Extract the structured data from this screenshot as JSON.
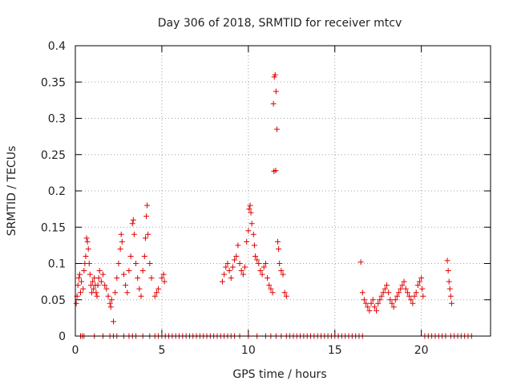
{
  "chart_data": {
    "type": "scatter",
    "title": "Day 306 of 2018, SRMTID for receiver mtcv",
    "xlabel": "GPS time / hours",
    "ylabel": "SRMTID / TECUs",
    "xlim": [
      0,
      24
    ],
    "ylim": [
      0,
      0.4
    ],
    "x_ticks": [
      0,
      5,
      10,
      15,
      20
    ],
    "y_ticks": [
      0,
      0.05,
      0.1,
      0.15,
      0.2,
      0.25,
      0.3,
      0.35,
      0.4
    ],
    "x_tick_labels": [
      "0",
      "5",
      "10",
      "15",
      "20"
    ],
    "y_tick_labels": [
      "0",
      "0.05",
      "0.1",
      "0.15",
      "0.2",
      "0.25",
      "0.3",
      "0.35",
      "0.4"
    ],
    "grid": true,
    "marker": "plus",
    "color": "#e00000",
    "series": [
      {
        "name": "SRMTID",
        "points": [
          [
            0.05,
            0.045
          ],
          [
            0.1,
            0.055
          ],
          [
            0.15,
            0.07
          ],
          [
            0.2,
            0.08
          ],
          [
            0.25,
            0.085
          ],
          [
            0.3,
            0.06
          ],
          [
            0.35,
            0.075
          ],
          [
            0.45,
            0.065
          ],
          [
            0.5,
            0.09
          ],
          [
            0.55,
            0.1
          ],
          [
            0.6,
            0.11
          ],
          [
            0.65,
            0.135
          ],
          [
            0.7,
            0.13
          ],
          [
            0.75,
            0.12
          ],
          [
            0.8,
            0.1
          ],
          [
            0.85,
            0.085
          ],
          [
            0.9,
            0.07
          ],
          [
            0.95,
            0.06
          ],
          [
            1.0,
            0.075
          ],
          [
            1.05,
            0.065
          ],
          [
            1.1,
            0.08
          ],
          [
            1.15,
            0.07
          ],
          [
            1.2,
            0.06
          ],
          [
            1.25,
            0.055
          ],
          [
            1.3,
            0.07
          ],
          [
            1.35,
            0.08
          ],
          [
            1.4,
            0.09
          ],
          [
            1.5,
            0.075
          ],
          [
            1.6,
            0.085
          ],
          [
            1.7,
            0.07
          ],
          [
            1.8,
            0.065
          ],
          [
            1.9,
            0.055
          ],
          [
            2.0,
            0.045
          ],
          [
            2.05,
            0.04
          ],
          [
            2.1,
            0.05
          ],
          [
            2.2,
            0.02
          ],
          [
            2.3,
            0.06
          ],
          [
            2.4,
            0.08
          ],
          [
            2.5,
            0.1
          ],
          [
            2.6,
            0.12
          ],
          [
            2.65,
            0.14
          ],
          [
            2.7,
            0.13
          ],
          [
            2.8,
            0.085
          ],
          [
            2.9,
            0.07
          ],
          [
            3.0,
            0.06
          ],
          [
            3.1,
            0.09
          ],
          [
            3.2,
            0.11
          ],
          [
            3.3,
            0.155
          ],
          [
            3.35,
            0.16
          ],
          [
            3.4,
            0.14
          ],
          [
            3.5,
            0.1
          ],
          [
            3.6,
            0.08
          ],
          [
            3.7,
            0.065
          ],
          [
            3.8,
            0.055
          ],
          [
            3.9,
            0.09
          ],
          [
            4.0,
            0.11
          ],
          [
            4.05,
            0.135
          ],
          [
            4.1,
            0.165
          ],
          [
            4.15,
            0.18
          ],
          [
            4.2,
            0.14
          ],
          [
            4.3,
            0.1
          ],
          [
            4.4,
            0.08
          ],
          [
            4.6,
            0.055
          ],
          [
            4.7,
            0.06
          ],
          [
            4.8,
            0.065
          ],
          [
            5.0,
            0.08
          ],
          [
            5.1,
            0.085
          ],
          [
            5.15,
            0.075
          ],
          [
            8.5,
            0.075
          ],
          [
            8.6,
            0.085
          ],
          [
            8.7,
            0.095
          ],
          [
            8.8,
            0.1
          ],
          [
            8.9,
            0.09
          ],
          [
            9.0,
            0.08
          ],
          [
            9.1,
            0.095
          ],
          [
            9.2,
            0.105
          ],
          [
            9.3,
            0.11
          ],
          [
            9.4,
            0.125
          ],
          [
            9.5,
            0.1
          ],
          [
            9.6,
            0.09
          ],
          [
            9.7,
            0.085
          ],
          [
            9.8,
            0.095
          ],
          [
            9.9,
            0.13
          ],
          [
            10.0,
            0.145
          ],
          [
            10.05,
            0.175
          ],
          [
            10.1,
            0.18
          ],
          [
            10.15,
            0.17
          ],
          [
            10.2,
            0.155
          ],
          [
            10.3,
            0.14
          ],
          [
            10.35,
            0.125
          ],
          [
            10.4,
            0.11
          ],
          [
            10.5,
            0.105
          ],
          [
            10.6,
            0.1
          ],
          [
            10.7,
            0.09
          ],
          [
            10.8,
            0.085
          ],
          [
            10.9,
            0.095
          ],
          [
            11.0,
            0.1
          ],
          [
            11.1,
            0.08
          ],
          [
            11.2,
            0.07
          ],
          [
            11.3,
            0.065
          ],
          [
            11.4,
            0.06
          ],
          [
            11.45,
            0.32
          ],
          [
            11.5,
            0.357
          ],
          [
            11.55,
            0.36
          ],
          [
            11.6,
            0.337
          ],
          [
            11.65,
            0.285
          ],
          [
            11.48,
            0.227
          ],
          [
            11.58,
            0.228
          ],
          [
            11.7,
            0.13
          ],
          [
            11.75,
            0.12
          ],
          [
            11.8,
            0.1
          ],
          [
            11.9,
            0.09
          ],
          [
            12.0,
            0.085
          ],
          [
            12.1,
            0.06
          ],
          [
            12.2,
            0.055
          ],
          [
            16.5,
            0.102
          ],
          [
            16.6,
            0.06
          ],
          [
            16.7,
            0.05
          ],
          [
            16.8,
            0.045
          ],
          [
            16.9,
            0.04
          ],
          [
            17.0,
            0.035
          ],
          [
            17.1,
            0.045
          ],
          [
            17.2,
            0.05
          ],
          [
            17.3,
            0.04
          ],
          [
            17.4,
            0.035
          ],
          [
            17.5,
            0.045
          ],
          [
            17.6,
            0.05
          ],
          [
            17.7,
            0.055
          ],
          [
            17.8,
            0.06
          ],
          [
            17.9,
            0.065
          ],
          [
            18.0,
            0.07
          ],
          [
            18.1,
            0.06
          ],
          [
            18.2,
            0.05
          ],
          [
            18.3,
            0.045
          ],
          [
            18.4,
            0.04
          ],
          [
            18.5,
            0.05
          ],
          [
            18.6,
            0.055
          ],
          [
            18.7,
            0.06
          ],
          [
            18.8,
            0.065
          ],
          [
            18.9,
            0.07
          ],
          [
            19.0,
            0.075
          ],
          [
            19.1,
            0.065
          ],
          [
            19.2,
            0.06
          ],
          [
            19.3,
            0.055
          ],
          [
            19.4,
            0.05
          ],
          [
            19.5,
            0.045
          ],
          [
            19.6,
            0.055
          ],
          [
            19.7,
            0.06
          ],
          [
            19.8,
            0.07
          ],
          [
            19.9,
            0.075
          ],
          [
            20.0,
            0.08
          ],
          [
            20.05,
            0.065
          ],
          [
            20.1,
            0.055
          ],
          [
            21.5,
            0.104
          ],
          [
            21.55,
            0.09
          ],
          [
            21.6,
            0.075
          ],
          [
            21.65,
            0.065
          ],
          [
            21.7,
            0.055
          ],
          [
            21.75,
            0.045
          ]
        ]
      },
      {
        "name": "SRMTID zero baseline",
        "points": [
          [
            0.3,
            0
          ],
          [
            0.4,
            0
          ],
          [
            0.5,
            0
          ],
          [
            1.1,
            0
          ],
          [
            1.6,
            0
          ],
          [
            2.0,
            0
          ],
          [
            2.2,
            0
          ],
          [
            2.4,
            0
          ],
          [
            2.8,
            0
          ],
          [
            3.1,
            0
          ],
          [
            3.3,
            0
          ],
          [
            3.5,
            0
          ],
          [
            3.9,
            0
          ],
          [
            4.3,
            0
          ],
          [
            4.6,
            0
          ],
          [
            4.8,
            0
          ],
          [
            5.0,
            0
          ],
          [
            5.2,
            0
          ],
          [
            5.4,
            0
          ],
          [
            5.6,
            0
          ],
          [
            5.8,
            0
          ],
          [
            6.0,
            0
          ],
          [
            6.2,
            0
          ],
          [
            6.4,
            0
          ],
          [
            6.6,
            0
          ],
          [
            6.8,
            0
          ],
          [
            7.0,
            0
          ],
          [
            7.2,
            0
          ],
          [
            7.4,
            0
          ],
          [
            7.6,
            0
          ],
          [
            7.8,
            0
          ],
          [
            8.0,
            0
          ],
          [
            8.2,
            0
          ],
          [
            8.4,
            0
          ],
          [
            8.6,
            0
          ],
          [
            8.8,
            0
          ],
          [
            9.0,
            0
          ],
          [
            9.2,
            0
          ],
          [
            9.5,
            0
          ],
          [
            10.0,
            0
          ],
          [
            10.5,
            0
          ],
          [
            11.0,
            0
          ],
          [
            11.3,
            0
          ],
          [
            11.6,
            0
          ],
          [
            11.9,
            0
          ],
          [
            12.2,
            0
          ],
          [
            12.4,
            0
          ],
          [
            12.6,
            0
          ],
          [
            12.8,
            0
          ],
          [
            13.0,
            0
          ],
          [
            13.2,
            0
          ],
          [
            13.4,
            0
          ],
          [
            13.6,
            0
          ],
          [
            13.8,
            0
          ],
          [
            14.0,
            0
          ],
          [
            14.2,
            0
          ],
          [
            14.4,
            0
          ],
          [
            14.6,
            0
          ],
          [
            14.8,
            0
          ],
          [
            15.0,
            0
          ],
          [
            15.2,
            0
          ],
          [
            15.4,
            0
          ],
          [
            15.6,
            0
          ],
          [
            15.8,
            0
          ],
          [
            16.0,
            0
          ],
          [
            16.2,
            0
          ],
          [
            16.4,
            0
          ],
          [
            16.6,
            0
          ],
          [
            20.2,
            0
          ],
          [
            20.4,
            0
          ],
          [
            20.6,
            0
          ],
          [
            20.8,
            0
          ],
          [
            21.0,
            0
          ],
          [
            21.2,
            0
          ],
          [
            21.4,
            0
          ],
          [
            21.7,
            0
          ],
          [
            21.9,
            0
          ],
          [
            22.1,
            0
          ],
          [
            22.3,
            0
          ],
          [
            22.5,
            0
          ],
          [
            22.7,
            0
          ],
          [
            22.9,
            0
          ]
        ]
      }
    ]
  }
}
